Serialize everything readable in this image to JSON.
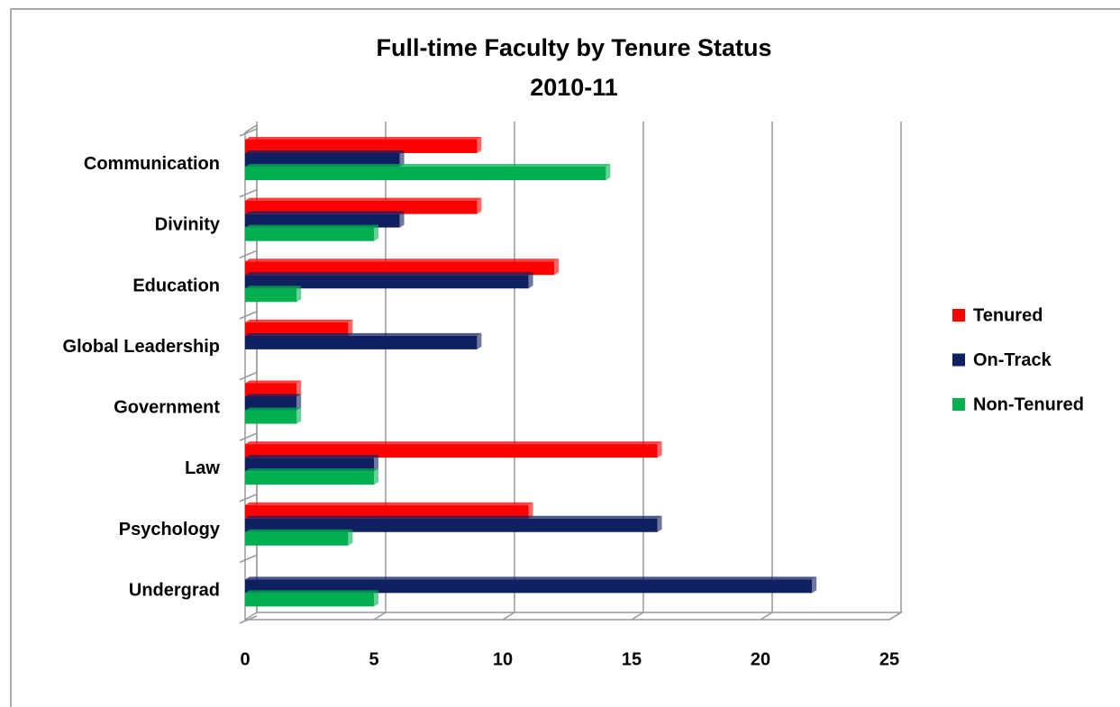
{
  "chart_data": {
    "type": "bar",
    "orientation": "horizontal",
    "title": "Full-time Faculty by Tenure Status",
    "subtitle": "2010-11",
    "categories": [
      "Communication",
      "Divinity",
      "Education",
      "Global Leadership",
      "Government",
      "Law",
      "Psychology",
      "Undergrad"
    ],
    "series": [
      {
        "name": "Tenured",
        "color": "#ff0000",
        "values": [
          9,
          9,
          12,
          4,
          2,
          16,
          11,
          0
        ]
      },
      {
        "name": "On-Track",
        "color": "#0f2060",
        "values": [
          6,
          6,
          11,
          9,
          2,
          5,
          16,
          22
        ]
      },
      {
        "name": "Non-Tenured",
        "color": "#00b050",
        "values": [
          14,
          5,
          2,
          0,
          2,
          5,
          4,
          5
        ]
      }
    ],
    "xlim": [
      0,
      25
    ],
    "xticks": [
      0,
      5,
      10,
      15,
      20,
      25
    ],
    "grid": true,
    "legend": "right"
  }
}
